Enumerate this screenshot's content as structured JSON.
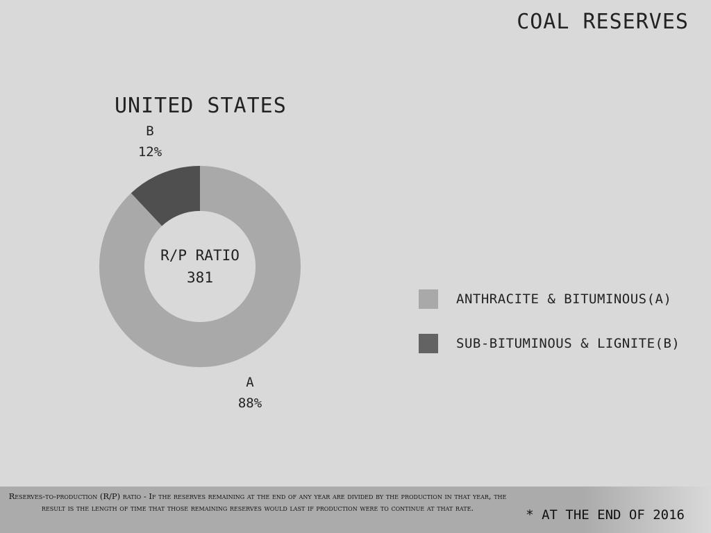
{
  "page": {
    "title": "COAL RESERVES"
  },
  "chart_data": {
    "type": "pie",
    "title": "UNITED STATES",
    "donut": true,
    "center_label": "R/P RATIO",
    "center_value": "381",
    "slices": [
      {
        "label": "A",
        "value": 88,
        "display": "88%",
        "color": "#a9a9a9"
      },
      {
        "label": "B",
        "value": 12,
        "display": "12%",
        "color": "#4f4f4f"
      }
    ],
    "legend": [
      {
        "label": "ANTHRACITE & BITUMINOUS(A)",
        "color": "#a9a9a9"
      },
      {
        "label": "SUB-BITUMINOUS & LIGNITE(B)",
        "color": "#636363"
      }
    ],
    "legend_position": "right"
  },
  "footer": {
    "definition": "Reserves-to-production (R/P) ratio - If the reserves remaining at the end of any year are divided by the production in that year, the result is the length of time that those remaining reserves would last if production were to continue at that rate.",
    "date_note": "* AT THE END OF 2016"
  }
}
